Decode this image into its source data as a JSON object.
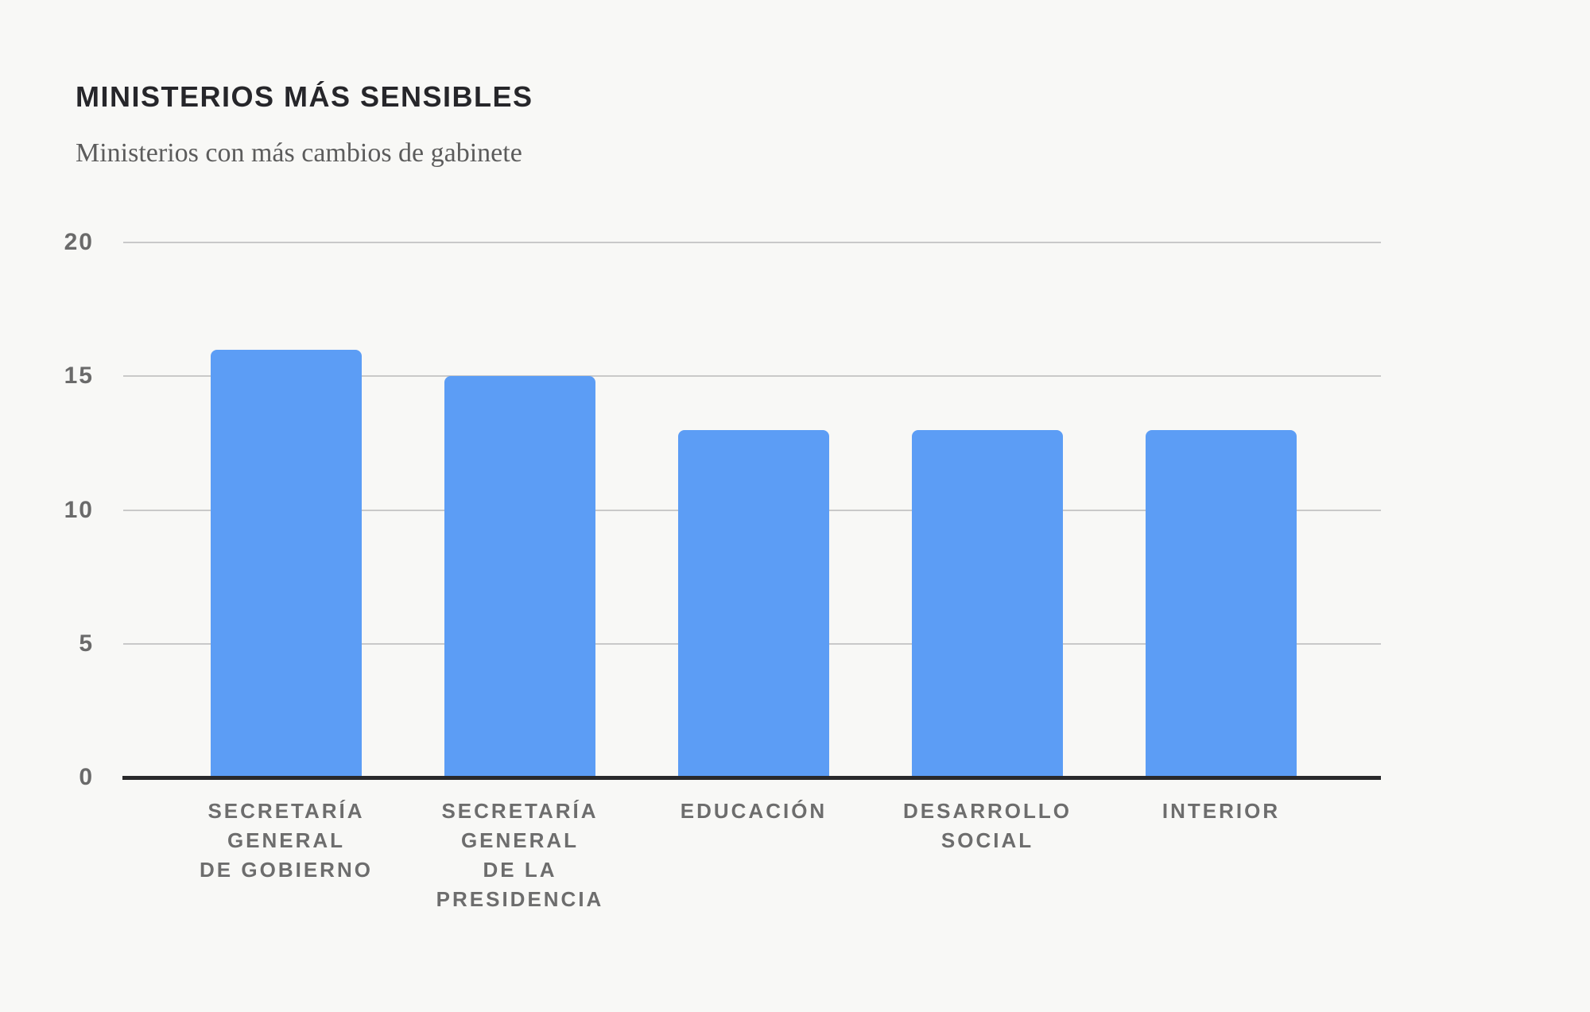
{
  "header": {
    "title": "MINISTERIOS MÁS SENSIBLES",
    "subtitle": "Ministerios con más cambios de gabinete"
  },
  "colors": {
    "background": "#f8f8f6",
    "bar": "#5C9DF5",
    "gridline": "#c9c9c9",
    "axis_line": "#29292b",
    "title_text": "#26262a",
    "subtitle_text": "#5c5c5c",
    "tick_text": "#6a6a6a",
    "category_text": "#6d6d6d"
  },
  "chart_data": {
    "type": "bar",
    "title": "MINISTERIOS MÁS SENSIBLES",
    "subtitle": "Ministerios con más cambios de gabinete",
    "categories": [
      "SECRETARÍA\nGENERAL\nDE GOBIERNO",
      "SECRETARÍA\nGENERAL\nDE LA\nPRESIDENCIA",
      "EDUCACIÓN",
      "DESARROLLO\nSOCIAL",
      "INTERIOR"
    ],
    "values": [
      16,
      15,
      13,
      13,
      13
    ],
    "yticks": [
      0,
      5,
      10,
      15,
      20
    ],
    "ylim": [
      0,
      20
    ],
    "xlabel": "",
    "ylabel": "",
    "grid": true,
    "legend": false,
    "bar_color": "#5C9DF5"
  }
}
